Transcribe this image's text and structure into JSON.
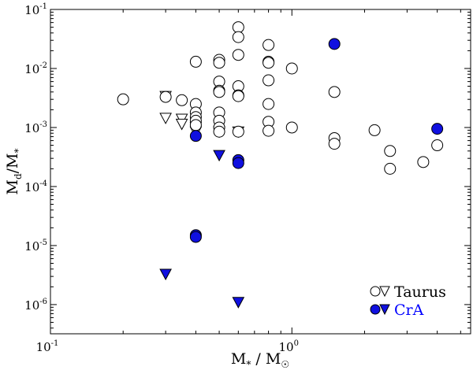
{
  "chart_data": {
    "type": "scatter",
    "x_scale": "log",
    "y_scale": "log",
    "xlim": [
      0.1,
      5.5
    ],
    "ylim": [
      3.2e-07,
      0.1
    ],
    "grid": false,
    "legend_placement": "bottom-right",
    "xlabel": {
      "base": "M",
      "sub1": "*",
      "mid": " / M",
      "sub2": "☉"
    },
    "ylabel": {
      "base": "M",
      "sub1": "d",
      "mid": "/M",
      "sub2": "*"
    },
    "x_ticks": [
      {
        "value": 0.1,
        "label_base": "10",
        "label_exp": "-1"
      },
      {
        "value": 1,
        "label_base": "10",
        "label_exp": "0"
      }
    ],
    "y_ticks": [
      {
        "value": 1e-06,
        "label_base": "10",
        "label_exp": "-6"
      },
      {
        "value": 1e-05,
        "label_base": "10",
        "label_exp": "-5"
      },
      {
        "value": 0.0001,
        "label_base": "10",
        "label_exp": "-4"
      },
      {
        "value": 0.001,
        "label_base": "10",
        "label_exp": "-3"
      },
      {
        "value": 0.01,
        "label_base": "10",
        "label_exp": "-2"
      },
      {
        "value": 0.1,
        "label_base": "10",
        "label_exp": "-1"
      }
    ],
    "series": [
      {
        "name": "Taurus",
        "key": "taurus",
        "color": "#ffffff",
        "edge_color": "#000000",
        "detections": [
          [
            0.2,
            0.003
          ],
          [
            0.3,
            0.0033
          ],
          [
            0.35,
            0.0029
          ],
          [
            0.4,
            0.013
          ],
          [
            0.4,
            0.0025
          ],
          [
            0.4,
            0.0018
          ],
          [
            0.4,
            0.0015
          ],
          [
            0.4,
            0.0013
          ],
          [
            0.4,
            0.0011
          ],
          [
            0.5,
            0.014
          ],
          [
            0.5,
            0.0125
          ],
          [
            0.5,
            0.006
          ],
          [
            0.5,
            0.0042
          ],
          [
            0.5,
            0.004
          ],
          [
            0.5,
            0.0018
          ],
          [
            0.5,
            0.0013
          ],
          [
            0.5,
            0.001
          ],
          [
            0.5,
            0.00085
          ],
          [
            0.6,
            0.05
          ],
          [
            0.6,
            0.034
          ],
          [
            0.6,
            0.017
          ],
          [
            0.6,
            0.005
          ],
          [
            0.6,
            0.0035
          ],
          [
            0.6,
            0.0034
          ],
          [
            0.6,
            0.00085
          ],
          [
            0.8,
            0.025
          ],
          [
            0.8,
            0.013
          ],
          [
            0.8,
            0.0125
          ],
          [
            0.8,
            0.0063
          ],
          [
            0.8,
            0.0025
          ],
          [
            0.8,
            0.00125
          ],
          [
            0.8,
            0.00088
          ],
          [
            1.0,
            0.01
          ],
          [
            1.0,
            0.001
          ],
          [
            1.5,
            0.004
          ],
          [
            1.5,
            0.00066
          ],
          [
            1.5,
            0.00053
          ],
          [
            2.2,
            0.0009
          ],
          [
            2.55,
            0.0004
          ],
          [
            2.55,
            0.0002
          ],
          [
            3.5,
            0.00026
          ],
          [
            4.0,
            0.0005
          ]
        ],
        "upper_limits": [
          [
            0.3,
            0.0034
          ],
          [
            0.3,
            0.00145
          ],
          [
            0.35,
            0.0014
          ],
          [
            0.35,
            0.00115
          ],
          [
            0.4,
            0.001
          ],
          [
            0.4,
            0.00085
          ],
          [
            0.5,
            0.0011
          ],
          [
            0.5,
            0.00085
          ],
          [
            0.6,
            0.00085
          ]
        ]
      },
      {
        "name": "CrA",
        "key": "cra",
        "color": "#1010e0",
        "edge_color": "#000000",
        "detections": [
          [
            0.4,
            0.00072
          ],
          [
            0.4,
            1.5e-05
          ],
          [
            0.4,
            1.4e-05
          ],
          [
            0.6,
            0.00028
          ],
          [
            0.6,
            0.00025
          ],
          [
            1.5,
            0.026
          ],
          [
            4.0,
            0.00095
          ]
        ],
        "upper_limits": [
          [
            0.3,
            3.3e-06
          ],
          [
            0.5,
            0.00034
          ],
          [
            0.6,
            1.1e-06
          ]
        ]
      }
    ]
  },
  "colors": {
    "cra_label": "#0000ff",
    "taurus_label": "#000000"
  }
}
